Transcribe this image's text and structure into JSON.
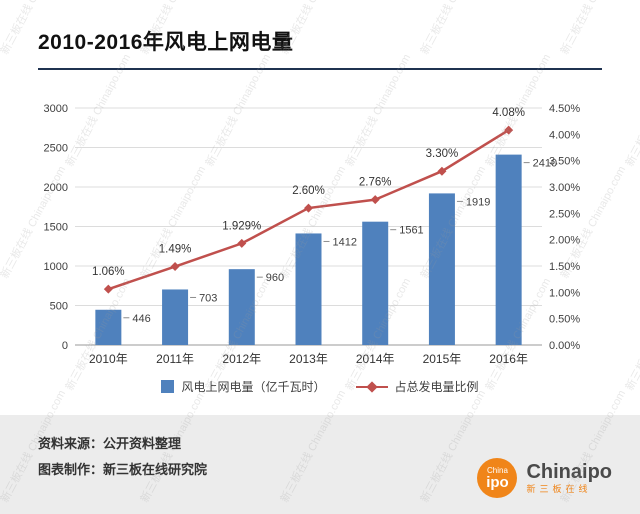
{
  "header": {
    "title": "2010-2016年风电上网电量"
  },
  "watermark": {
    "text": "新三板在线 Chinaipo.com"
  },
  "chart_data": {
    "type": "bar",
    "subtype": "combo-bar-line",
    "categories": [
      "2010年",
      "2011年",
      "2012年",
      "2013年",
      "2014年",
      "2015年",
      "2016年"
    ],
    "series": [
      {
        "name": "风电上网电量（亿千瓦时）",
        "type": "bar",
        "axis": "left",
        "color": "#4f81bd",
        "values": [
          446,
          703,
          960,
          1412,
          1561,
          1919,
          2410
        ],
        "labels": [
          "446",
          "703",
          "960",
          "1412",
          "1561",
          "1919",
          "2410"
        ]
      },
      {
        "name": "占总发电量比例",
        "type": "line",
        "axis": "right",
        "color": "#c0504d",
        "values": [
          1.06,
          1.49,
          1.929,
          2.6,
          2.76,
          3.3,
          4.08
        ],
        "labels": [
          "1.06%",
          "1.49%",
          "1.929%",
          "2.60%",
          "2.76%",
          "3.30%",
          "4.08%"
        ]
      }
    ],
    "left_axis": {
      "min": 0,
      "max": 3000,
      "step": 500,
      "ticks": [
        "0",
        "500",
        "1000",
        "1500",
        "2000",
        "2500",
        "3000"
      ]
    },
    "right_axis": {
      "min": 0,
      "max": 4.5,
      "step": 0.5,
      "ticks": [
        "0.00%",
        "0.50%",
        "1.00%",
        "1.50%",
        "2.00%",
        "2.50%",
        "3.00%",
        "3.50%",
        "4.00%",
        "4.50%"
      ]
    },
    "grid": true,
    "legend_position": "bottom"
  },
  "legend": [
    {
      "label": "风电上网电量（亿千瓦时）"
    },
    {
      "label": "占总发电量比例"
    }
  ],
  "footer": {
    "source": "资料来源：公开资料整理",
    "maker": "图表制作：新三板在线研究院"
  },
  "logo": {
    "circle_line1": "China",
    "circle_line2": "ipo",
    "name": "Chinaipo",
    "subtitle": "新三板在线"
  },
  "colors": {
    "bar": "#4f81bd",
    "line": "#c0504d",
    "grid": "#dcdcdc",
    "axis": "#9a9a9a",
    "tick_text": "#404040",
    "title_rule": "#1f3250",
    "footer_bg": "#ececec",
    "brand_orange": "#f08519"
  }
}
